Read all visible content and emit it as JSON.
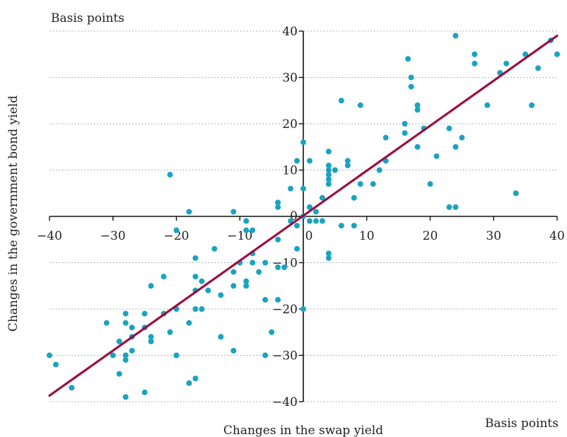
{
  "chart_data": {
    "type": "scatter",
    "title": "",
    "xlabel": "Changes in the swap yield",
    "ylabel": "Changes in the government bond yield",
    "x_unit_label": "Basis points",
    "y_unit_label": "Basis points",
    "xlim": [
      -40,
      40
    ],
    "ylim": [
      -40,
      40
    ],
    "xticks": [
      -40,
      -30,
      -20,
      -10,
      0,
      10,
      20,
      30,
      40
    ],
    "yticks": [
      -40,
      -30,
      -20,
      -10,
      0,
      10,
      20,
      30,
      40
    ],
    "grid": "horizontal dotted",
    "colors": {
      "points": "#1aa3c0",
      "fit_line": "#9b1040",
      "axis": "#111111"
    },
    "series": [
      {
        "type": "scatter",
        "points": [
          [
            -21,
            9
          ],
          [
            -18,
            1
          ],
          [
            -11,
            1
          ],
          [
            -9,
            -1
          ],
          [
            -8,
            -3
          ],
          [
            -4,
            3
          ],
          [
            -4,
            2
          ],
          [
            -2,
            -1
          ],
          [
            -1,
            -2
          ],
          [
            0,
            0
          ],
          [
            -2,
            6
          ],
          [
            0,
            6
          ],
          [
            0,
            16
          ],
          [
            -1,
            12
          ],
          [
            1,
            12
          ],
          [
            1,
            2
          ],
          [
            2,
            1
          ],
          [
            1,
            -1
          ],
          [
            2,
            -1
          ],
          [
            3,
            -1
          ],
          [
            3,
            4
          ],
          [
            4,
            7
          ],
          [
            4,
            8
          ],
          [
            4,
            9
          ],
          [
            4,
            10
          ],
          [
            4,
            11
          ],
          [
            4,
            14
          ],
          [
            5,
            10
          ],
          [
            6,
            25
          ],
          [
            7,
            11
          ],
          [
            7,
            12
          ],
          [
            8,
            4
          ],
          [
            9,
            7
          ],
          [
            9,
            24
          ],
          [
            11,
            7
          ],
          [
            12,
            10
          ],
          [
            13,
            12
          ],
          [
            13,
            17
          ],
          [
            16,
            18
          ],
          [
            16,
            20
          ],
          [
            16.5,
            34
          ],
          [
            17,
            30
          ],
          [
            17,
            28
          ],
          [
            18,
            24
          ],
          [
            18,
            23
          ],
          [
            18,
            15
          ],
          [
            19,
            19
          ],
          [
            20,
            7
          ],
          [
            21,
            13
          ],
          [
            23,
            19
          ],
          [
            24,
            15
          ],
          [
            24,
            39
          ],
          [
            25,
            17
          ],
          [
            27,
            33
          ],
          [
            27,
            35
          ],
          [
            29,
            24
          ],
          [
            31,
            31
          ],
          [
            32,
            33
          ],
          [
            33.5,
            5
          ],
          [
            35,
            35
          ],
          [
            36,
            24
          ],
          [
            37,
            32
          ],
          [
            39,
            38
          ],
          [
            40,
            35
          ],
          [
            23,
            2
          ],
          [
            24,
            2
          ],
          [
            6,
            -2
          ],
          [
            8,
            -2
          ],
          [
            4,
            -8
          ],
          [
            4,
            -9
          ],
          [
            0,
            -20
          ],
          [
            -1,
            -7
          ],
          [
            -3,
            -11
          ],
          [
            -4,
            -5
          ],
          [
            -4,
            -11
          ],
          [
            -4,
            -18
          ],
          [
            -6,
            -10
          ],
          [
            -6,
            -18
          ],
          [
            -6,
            -30
          ],
          [
            -7,
            -12
          ],
          [
            -8,
            -8
          ],
          [
            -8,
            -10
          ],
          [
            -9,
            -3
          ],
          [
            -9,
            -14
          ],
          [
            -9,
            -15
          ],
          [
            -5,
            -25
          ],
          [
            -10,
            -10
          ],
          [
            -11,
            -12
          ],
          [
            -11,
            -15
          ],
          [
            -11,
            -29
          ],
          [
            -13,
            -17
          ],
          [
            -13,
            -26
          ],
          [
            -14,
            -7
          ],
          [
            -15,
            -16
          ],
          [
            -16,
            -14
          ],
          [
            -16,
            -20
          ],
          [
            -17,
            -9
          ],
          [
            -17,
            -13
          ],
          [
            -17,
            -16
          ],
          [
            -17,
            -20
          ],
          [
            -17,
            -35
          ],
          [
            -18,
            -23
          ],
          [
            -18,
            -36
          ],
          [
            -20,
            -3
          ],
          [
            -20,
            -20
          ],
          [
            -20,
            -30
          ],
          [
            -21,
            -25
          ],
          [
            -22,
            -13
          ],
          [
            -22,
            -21
          ],
          [
            -24,
            -15
          ],
          [
            -24,
            -26
          ],
          [
            -24,
            -27
          ],
          [
            -25,
            -21
          ],
          [
            -25,
            -24
          ],
          [
            -25,
            -38
          ],
          [
            -27,
            -24
          ],
          [
            -27,
            -26
          ],
          [
            -27,
            -29
          ],
          [
            -28,
            -21
          ],
          [
            -28,
            -23
          ],
          [
            -28,
            -30
          ],
          [
            -28,
            -31
          ],
          [
            -28,
            -39
          ],
          [
            -29,
            -27
          ],
          [
            -29,
            -34
          ],
          [
            -30,
            -30
          ],
          [
            -31,
            -23
          ],
          [
            -36.5,
            -37
          ],
          [
            -39,
            -32
          ],
          [
            -40,
            -30
          ]
        ]
      },
      {
        "type": "line",
        "points": [
          [
            -40,
            -38.7
          ],
          [
            40,
            39
          ]
        ]
      }
    ]
  }
}
